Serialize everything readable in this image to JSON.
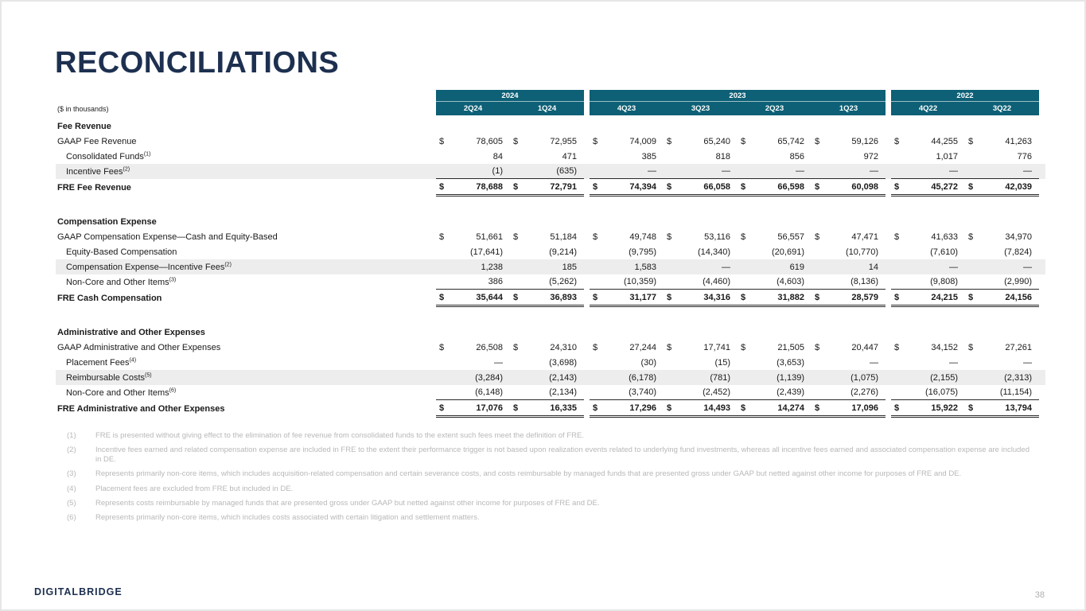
{
  "slide": {
    "title": "RECONCILIATIONS",
    "units_label": "($ in thousands)",
    "page_number": "38",
    "logo_part1": "DIGITAL",
    "logo_part2": "BRIDGE"
  },
  "colors": {
    "header_bg": "#0d6075",
    "title_text": "#1d3050",
    "stripe": "#ededed"
  },
  "table": {
    "groups": [
      {
        "year": "2024",
        "quarters": [
          "2Q24",
          "1Q24"
        ]
      },
      {
        "year": "2023",
        "quarters": [
          "4Q23",
          "3Q23",
          "2Q23",
          "1Q23"
        ]
      },
      {
        "year": "2022",
        "quarters": [
          "4Q22",
          "3Q22"
        ]
      }
    ],
    "sections": [
      {
        "header": "Fee Revenue",
        "rows": [
          {
            "label": "GAAP Fee Revenue",
            "sup": "",
            "indent": false,
            "dollar": true,
            "shaded": false,
            "values": [
              "78,605",
              "72,955",
              "74,009",
              "65,240",
              "65,742",
              "59,126",
              "44,255",
              "41,263"
            ]
          },
          {
            "label": "Consolidated Funds",
            "sup": "(1)",
            "indent": true,
            "dollar": false,
            "shaded": false,
            "values": [
              "84",
              "471",
              "385",
              "818",
              "856",
              "972",
              "1,017",
              "776"
            ]
          },
          {
            "label": "Incentive Fees",
            "sup": "(2)",
            "indent": true,
            "dollar": false,
            "shaded": true,
            "values": [
              "(1)",
              "(635)",
              "—",
              "—",
              "—",
              "—",
              "—",
              "—"
            ]
          }
        ],
        "total": {
          "label": "FRE Fee Revenue",
          "values": [
            "78,688",
            "72,791",
            "74,394",
            "66,058",
            "66,598",
            "60,098",
            "45,272",
            "42,039"
          ]
        }
      },
      {
        "header": "Compensation Expense",
        "rows": [
          {
            "label": "GAAP Compensation Expense—Cash and Equity-Based",
            "sup": "",
            "indent": false,
            "dollar": true,
            "shaded": false,
            "values": [
              "51,661",
              "51,184",
              "49,748",
              "53,116",
              "56,557",
              "47,471",
              "41,633",
              "34,970"
            ]
          },
          {
            "label": "Equity-Based Compensation",
            "sup": "",
            "indent": true,
            "dollar": false,
            "shaded": false,
            "values": [
              "(17,641)",
              "(9,214)",
              "(9,795)",
              "(14,340)",
              "(20,691)",
              "(10,770)",
              "(7,610)",
              "(7,824)"
            ]
          },
          {
            "label": "Compensation Expense—Incentive Fees",
            "sup": "(2)",
            "indent": true,
            "dollar": false,
            "shaded": true,
            "values": [
              "1,238",
              "185",
              "1,583",
              "—",
              "619",
              "14",
              "—",
              "—"
            ]
          },
          {
            "label": "Non-Core and Other Items",
            "sup": "(3)",
            "indent": true,
            "dollar": false,
            "shaded": false,
            "values": [
              "386",
              "(5,262)",
              "(10,359)",
              "(4,460)",
              "(4,603)",
              "(8,136)",
              "(9,808)",
              "(2,990)"
            ]
          }
        ],
        "total": {
          "label": "FRE Cash Compensation",
          "values": [
            "35,644",
            "36,893",
            "31,177",
            "34,316",
            "31,882",
            "28,579",
            "24,215",
            "24,156"
          ]
        }
      },
      {
        "header": "Administrative and Other Expenses",
        "rows": [
          {
            "label": "GAAP Administrative and Other Expenses",
            "sup": "",
            "indent": false,
            "dollar": true,
            "shaded": false,
            "values": [
              "26,508",
              "24,310",
              "27,244",
              "17,741",
              "21,505",
              "20,447",
              "34,152",
              "27,261"
            ]
          },
          {
            "label": "Placement Fees",
            "sup": "(4)",
            "indent": true,
            "dollar": false,
            "shaded": false,
            "values": [
              "—",
              "(3,698)",
              "(30)",
              "(15)",
              "(3,653)",
              "—",
              "—",
              "—"
            ]
          },
          {
            "label": "Reimbursable Costs",
            "sup": "(5)",
            "indent": true,
            "dollar": false,
            "shaded": true,
            "values": [
              "(3,284)",
              "(2,143)",
              "(6,178)",
              "(781)",
              "(1,139)",
              "(1,075)",
              "(2,155)",
              "(2,313)"
            ]
          },
          {
            "label": "Non-Core and Other Items",
            "sup": "(6)",
            "indent": true,
            "dollar": false,
            "shaded": false,
            "values": [
              "(6,148)",
              "(2,134)",
              "(3,740)",
              "(2,452)",
              "(2,439)",
              "(2,276)",
              "(16,075)",
              "(11,154)"
            ]
          }
        ],
        "total": {
          "label": "FRE Administrative and Other Expenses",
          "values": [
            "17,076",
            "16,335",
            "17,296",
            "14,493",
            "14,274",
            "17,096",
            "15,922",
            "13,794"
          ]
        }
      }
    ]
  },
  "footnotes": [
    {
      "num": "(1)",
      "text": "FRE is presented without giving effect to the elimination of fee revenue from consolidated funds to the extent such fees meet the definition of FRE."
    },
    {
      "num": "(2)",
      "text": "Incentive fees earned and related compensation expense are included in FRE to the extent their performance trigger is not based upon realization events related to underlying fund investments, whereas all incentive fees earned and associated compensation expense are included in DE."
    },
    {
      "num": "(3)",
      "text": "Represents primarily non-core items, which includes acquisition-related compensation and certain severance costs, and costs reimbursable by managed funds that are presented gross under GAAP but netted against other income for purposes of FRE and DE."
    },
    {
      "num": "(4)",
      "text": "Placement fees are excluded from FRE but included in DE."
    },
    {
      "num": "(5)",
      "text": "Represents costs reimbursable by managed funds that are presented gross under GAAP but netted against other income for purposes of FRE and DE."
    },
    {
      "num": "(6)",
      "text": "Represents primarily non-core items, which includes costs associated with certain litigation and settlement matters."
    }
  ]
}
